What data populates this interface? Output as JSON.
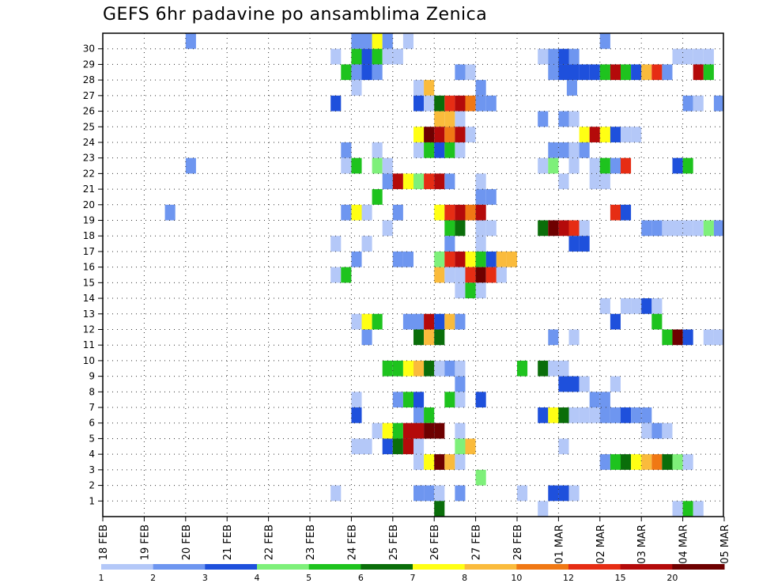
{
  "chart_data": {
    "type": "heatmap",
    "title": "GEFS 6hr padavine po ansamblima Zenica",
    "xlabel": "",
    "ylabel": "",
    "y_members": [
      1,
      2,
      3,
      4,
      5,
      6,
      7,
      8,
      9,
      10,
      11,
      12,
      13,
      14,
      15,
      16,
      17,
      18,
      19,
      20,
      21,
      22,
      23,
      24,
      25,
      26,
      27,
      28,
      29,
      30
    ],
    "ylim": [
      0,
      30
    ],
    "x_start_date": "2020-02-18",
    "x_ticks": [
      "18 FEB",
      "19 FEB",
      "20 FEB",
      "21 FEB",
      "22 FEB",
      "23 FEB",
      "24 FEB",
      "25 FEB",
      "26 FEB",
      "27 FEB",
      "28 FEB",
      "01 MAR",
      "02 MAR",
      "03 MAR",
      "04 MAR",
      "05 MAR"
    ],
    "grid": true,
    "colorbar": {
      "labels": [
        "1",
        "2",
        "3",
        "4",
        "5",
        "6",
        "7",
        "8",
        "10",
        "12",
        "15",
        "20"
      ],
      "colors": [
        "#b4c8f8",
        "#6e96f0",
        "#1e50dc",
        "#7ef07a",
        "#1ec31e",
        "#0a6e0a",
        "#ffff14",
        "#fabb3c",
        "#f07814",
        "#e62d14",
        "#b40a0a",
        "#6e0000"
      ]
    },
    "cells": [
      [
        30,
        20.0,
        2
      ],
      [
        30,
        24.0,
        2
      ],
      [
        30,
        24.25,
        2
      ],
      [
        30,
        24.5,
        7
      ],
      [
        30,
        24.75,
        2
      ],
      [
        30,
        25.25,
        1
      ],
      [
        30,
        30.0,
        2
      ],
      [
        29,
        23.5,
        1
      ],
      [
        29,
        24.0,
        5
      ],
      [
        29,
        24.25,
        3
      ],
      [
        29,
        24.5,
        5
      ],
      [
        29,
        24.75,
        1
      ],
      [
        29,
        25.0,
        1
      ],
      [
        29,
        28.5,
        1
      ],
      [
        29,
        28.75,
        2
      ],
      [
        29,
        29.0,
        3
      ],
      [
        29,
        29.25,
        2
      ],
      [
        29,
        31.75,
        1
      ],
      [
        29,
        32.0,
        1
      ],
      [
        29,
        32.25,
        1
      ],
      [
        29,
        32.5,
        1
      ],
      [
        28,
        23.75,
        5
      ],
      [
        28,
        24.0,
        2
      ],
      [
        28,
        24.25,
        3
      ],
      [
        28,
        24.5,
        2
      ],
      [
        28,
        26.5,
        2
      ],
      [
        28,
        26.75,
        1
      ],
      [
        28,
        28.75,
        2
      ],
      [
        28,
        29.0,
        3
      ],
      [
        28,
        29.25,
        3
      ],
      [
        28,
        29.5,
        3
      ],
      [
        28,
        29.75,
        3
      ],
      [
        28,
        30.0,
        5
      ],
      [
        28,
        30.25,
        11
      ],
      [
        28,
        30.5,
        5
      ],
      [
        28,
        30.75,
        3
      ],
      [
        28,
        31.0,
        8
      ],
      [
        28,
        31.25,
        10
      ],
      [
        28,
        31.5,
        2
      ],
      [
        28,
        32.25,
        11
      ],
      [
        28,
        32.5,
        5
      ],
      [
        27,
        24.0,
        1
      ],
      [
        27,
        25.5,
        1
      ],
      [
        27,
        25.75,
        8
      ],
      [
        27,
        27.0,
        2
      ],
      [
        27,
        29.2,
        2
      ],
      [
        26,
        23.5,
        3
      ],
      [
        26,
        25.5,
        3
      ],
      [
        26,
        25.75,
        1
      ],
      [
        26,
        26.0,
        6
      ],
      [
        26,
        26.25,
        10
      ],
      [
        26,
        26.5,
        11
      ],
      [
        26,
        26.75,
        9
      ],
      [
        26,
        27.0,
        2
      ],
      [
        26,
        27.25,
        2
      ],
      [
        26,
        32.0,
        2
      ],
      [
        26,
        32.25,
        1
      ],
      [
        26,
        32.75,
        2
      ],
      [
        26,
        33.0,
        8
      ],
      [
        26,
        33.25,
        7
      ],
      [
        26,
        33.5,
        2
      ],
      [
        25,
        26.0,
        8
      ],
      [
        25,
        26.25,
        8
      ],
      [
        25,
        26.5,
        1
      ],
      [
        25,
        28.5,
        2
      ],
      [
        25,
        29.0,
        2
      ],
      [
        25,
        29.25,
        1
      ],
      [
        24,
        25.5,
        7
      ],
      [
        24,
        25.75,
        12
      ],
      [
        24,
        26.0,
        11
      ],
      [
        24,
        26.25,
        9
      ],
      [
        24,
        26.5,
        11
      ],
      [
        24,
        26.75,
        1
      ],
      [
        24,
        29.5,
        7
      ],
      [
        24,
        29.75,
        11
      ],
      [
        24,
        30.0,
        7
      ],
      [
        24,
        30.25,
        3
      ],
      [
        24,
        30.5,
        1
      ],
      [
        24,
        30.75,
        1
      ],
      [
        24,
        33.5,
        2
      ],
      [
        23,
        23.75,
        2
      ],
      [
        23,
        24.5,
        1
      ],
      [
        23,
        25.5,
        1
      ],
      [
        23,
        25.75,
        5
      ],
      [
        23,
        26.0,
        3
      ],
      [
        23,
        26.25,
        5
      ],
      [
        23,
        26.5,
        1
      ],
      [
        23,
        28.75,
        2
      ],
      [
        23,
        29.0,
        2
      ],
      [
        23,
        29.25,
        1
      ],
      [
        23,
        29.5,
        2
      ],
      [
        22,
        20.0,
        2
      ],
      [
        22,
        23.75,
        1
      ],
      [
        22,
        24.0,
        5
      ],
      [
        22,
        24.5,
        4
      ],
      [
        22,
        24.75,
        1
      ],
      [
        22,
        28.5,
        1
      ],
      [
        22,
        28.75,
        4
      ],
      [
        22,
        29.25,
        1
      ],
      [
        22,
        29.75,
        1
      ],
      [
        22,
        30.0,
        5
      ],
      [
        22,
        30.25,
        2
      ],
      [
        22,
        30.5,
        10
      ],
      [
        22,
        31.75,
        3
      ],
      [
        22,
        32.0,
        5
      ],
      [
        22,
        33.25,
        7
      ],
      [
        22,
        33.5,
        3
      ],
      [
        21,
        24.75,
        2
      ],
      [
        21,
        25.0,
        11
      ],
      [
        21,
        25.25,
        7
      ],
      [
        21,
        25.5,
        4
      ],
      [
        21,
        25.75,
        10
      ],
      [
        21,
        26.0,
        11
      ],
      [
        21,
        26.25,
        2
      ],
      [
        21,
        27.0,
        1
      ],
      [
        21,
        29.0,
        1
      ],
      [
        21,
        29.75,
        1
      ],
      [
        21,
        30.0,
        1
      ],
      [
        21,
        33.0,
        3
      ],
      [
        21,
        33.5,
        4
      ],
      [
        21,
        33.75,
        1
      ],
      [
        20,
        24.5,
        5
      ],
      [
        20,
        27.0,
        2
      ],
      [
        20,
        27.25,
        2
      ],
      [
        19,
        19.5,
        2
      ],
      [
        19,
        23.75,
        2
      ],
      [
        19,
        24.0,
        7
      ],
      [
        19,
        24.25,
        1
      ],
      [
        19,
        25.0,
        2
      ],
      [
        19,
        26.0,
        7
      ],
      [
        19,
        26.25,
        10
      ],
      [
        19,
        26.5,
        11
      ],
      [
        19,
        26.75,
        9
      ],
      [
        19,
        27.0,
        11
      ],
      [
        19,
        30.25,
        10
      ],
      [
        19,
        30.5,
        3
      ],
      [
        18,
        24.75,
        1
      ],
      [
        18,
        26.25,
        5
      ],
      [
        18,
        26.5,
        6
      ],
      [
        18,
        27.0,
        1
      ],
      [
        18,
        27.25,
        1
      ],
      [
        18,
        28.5,
        6
      ],
      [
        18,
        28.75,
        12
      ],
      [
        18,
        29.0,
        11
      ],
      [
        18,
        29.25,
        10
      ],
      [
        18,
        29.5,
        1
      ],
      [
        18,
        31.0,
        2
      ],
      [
        18,
        31.25,
        2
      ],
      [
        18,
        31.5,
        1
      ],
      [
        18,
        31.75,
        1
      ],
      [
        18,
        32.0,
        1
      ],
      [
        18,
        32.25,
        1
      ],
      [
        18,
        32.5,
        4
      ],
      [
        18,
        32.75,
        2
      ],
      [
        18,
        33.0,
        1
      ],
      [
        18,
        33.5,
        1
      ],
      [
        17,
        23.5,
        1
      ],
      [
        17,
        24.25,
        1
      ],
      [
        17,
        26.25,
        2
      ],
      [
        17,
        27.0,
        1
      ],
      [
        17,
        29.25,
        3
      ],
      [
        17,
        29.5,
        3
      ],
      [
        16,
        24.0,
        2
      ],
      [
        16,
        25.0,
        2
      ],
      [
        16,
        25.25,
        2
      ],
      [
        16,
        26.0,
        4
      ],
      [
        16,
        26.25,
        10
      ],
      [
        16,
        26.5,
        11
      ],
      [
        16,
        26.75,
        7
      ],
      [
        16,
        27.0,
        5
      ],
      [
        16,
        27.25,
        3
      ],
      [
        16,
        27.5,
        8
      ],
      [
        16,
        27.75,
        8
      ],
      [
        16,
        33.5,
        1
      ],
      [
        15,
        23.5,
        1
      ],
      [
        15,
        23.75,
        5
      ],
      [
        15,
        26.0,
        8
      ],
      [
        15,
        26.25,
        1
      ],
      [
        15,
        26.5,
        1
      ],
      [
        15,
        26.75,
        10
      ],
      [
        15,
        27.0,
        12
      ],
      [
        15,
        27.25,
        10
      ],
      [
        15,
        27.5,
        1
      ],
      [
        14,
        26.5,
        1
      ],
      [
        14,
        26.75,
        1
      ],
      [
        14,
        27.0,
        1
      ],
      [
        14,
        26.75,
        5
      ],
      [
        13,
        30.0,
        1
      ],
      [
        13,
        30.5,
        1
      ],
      [
        13,
        30.75,
        1
      ],
      [
        13,
        31.0,
        3
      ],
      [
        13,
        31.25,
        1
      ],
      [
        12,
        24.0,
        1
      ],
      [
        12,
        24.25,
        7
      ],
      [
        12,
        24.5,
        5
      ],
      [
        12,
        25.25,
        2
      ],
      [
        12,
        25.5,
        2
      ],
      [
        12,
        25.75,
        11
      ],
      [
        12,
        26.0,
        3
      ],
      [
        12,
        26.25,
        8
      ],
      [
        12,
        26.5,
        2
      ],
      [
        12,
        30.25,
        3
      ],
      [
        12,
        31.25,
        5
      ],
      [
        11,
        24.25,
        2
      ],
      [
        11,
        25.5,
        6
      ],
      [
        11,
        25.75,
        8
      ],
      [
        11,
        26.0,
        6
      ],
      [
        11,
        28.75,
        2
      ],
      [
        11,
        29.25,
        1
      ],
      [
        11,
        31.5,
        5
      ],
      [
        11,
        31.75,
        12
      ],
      [
        11,
        32.0,
        3
      ],
      [
        11,
        32.5,
        1
      ],
      [
        11,
        32.75,
        1
      ],
      [
        9,
        24.75,
        5
      ],
      [
        9,
        25.0,
        5
      ],
      [
        9,
        25.25,
        7
      ],
      [
        9,
        25.5,
        8
      ],
      [
        9,
        25.75,
        6
      ],
      [
        9,
        26.0,
        1
      ],
      [
        9,
        26.25,
        2
      ],
      [
        9,
        26.5,
        1
      ],
      [
        9,
        28.0,
        5
      ],
      [
        9,
        28.5,
        6
      ],
      [
        9,
        28.75,
        1
      ],
      [
        9,
        29.0,
        1
      ],
      [
        8,
        26.5,
        2
      ],
      [
        8,
        29.0,
        3
      ],
      [
        8,
        29.25,
        3
      ],
      [
        8,
        29.5,
        1
      ],
      [
        8,
        30.25,
        1
      ],
      [
        7,
        24.0,
        1
      ],
      [
        7,
        25.0,
        2
      ],
      [
        7,
        25.25,
        5
      ],
      [
        7,
        25.5,
        3
      ],
      [
        7,
        26.25,
        5
      ],
      [
        7,
        26.5,
        1
      ],
      [
        7,
        27.0,
        3
      ],
      [
        7,
        29.75,
        2
      ],
      [
        7,
        30.0,
        2
      ],
      [
        7,
        33.5,
        2
      ],
      [
        6,
        24.0,
        3
      ],
      [
        6,
        25.5,
        2
      ],
      [
        6,
        25.75,
        5
      ],
      [
        6,
        28.5,
        3
      ],
      [
        6,
        28.75,
        7
      ],
      [
        6,
        29.0,
        6
      ],
      [
        6,
        29.25,
        1
      ],
      [
        6,
        29.5,
        1
      ],
      [
        6,
        29.75,
        1
      ],
      [
        6,
        30.0,
        2
      ],
      [
        6,
        30.25,
        2
      ],
      [
        6,
        30.5,
        3
      ],
      [
        6,
        30.75,
        2
      ],
      [
        6,
        31.0,
        2
      ],
      [
        5,
        24.5,
        1
      ],
      [
        5,
        24.75,
        7
      ],
      [
        5,
        25.0,
        5
      ],
      [
        5,
        25.25,
        11
      ],
      [
        5,
        25.5,
        11
      ],
      [
        5,
        25.75,
        12
      ],
      [
        5,
        26.0,
        12
      ],
      [
        5,
        26.5,
        1
      ],
      [
        5,
        31.0,
        1
      ],
      [
        5,
        31.25,
        2
      ],
      [
        5,
        31.5,
        1
      ],
      [
        4,
        24.0,
        1
      ],
      [
        4,
        24.25,
        1
      ],
      [
        4,
        24.75,
        3
      ],
      [
        4,
        25.0,
        6
      ],
      [
        4,
        25.25,
        11
      ],
      [
        4,
        25.5,
        1
      ],
      [
        4,
        26.5,
        4
      ],
      [
        4,
        26.75,
        8
      ],
      [
        4,
        29.0,
        1
      ],
      [
        3,
        25.5,
        1
      ],
      [
        3,
        25.75,
        7
      ],
      [
        3,
        26.0,
        12
      ],
      [
        3,
        26.25,
        8
      ],
      [
        3,
        26.5,
        1
      ],
      [
        3,
        30.0,
        2
      ],
      [
        3,
        30.25,
        5
      ],
      [
        3,
        30.5,
        6
      ],
      [
        3,
        30.75,
        7
      ],
      [
        3,
        31.0,
        8
      ],
      [
        3,
        31.25,
        9
      ],
      [
        3,
        31.5,
        6
      ],
      [
        3,
        31.75,
        4
      ],
      [
        3,
        32.0,
        1
      ],
      [
        2,
        27.0,
        4
      ],
      [
        1,
        23.5,
        1
      ],
      [
        1,
        25.5,
        2
      ],
      [
        1,
        25.75,
        2
      ],
      [
        1,
        26.0,
        1
      ],
      [
        1,
        26.5,
        2
      ],
      [
        1,
        28.0,
        1
      ],
      [
        1,
        28.75,
        3
      ],
      [
        1,
        29.0,
        3
      ],
      [
        1,
        29.25,
        1
      ],
      [
        0,
        26.0,
        6
      ],
      [
        0,
        28.5,
        1
      ],
      [
        0,
        31.75,
        1
      ],
      [
        0,
        32.0,
        5
      ],
      [
        0,
        32.25,
        1
      ]
    ]
  }
}
